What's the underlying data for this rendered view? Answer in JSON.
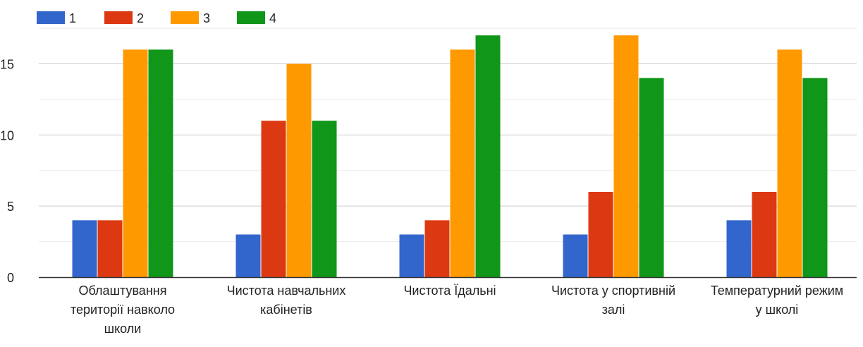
{
  "chart_data": {
    "type": "bar",
    "categories": [
      [
        "Облаштування",
        "території навколо",
        "школи"
      ],
      [
        "Чистота навчальних",
        "кабінетів"
      ],
      [
        "Чистота Їдальні"
      ],
      [
        "Чистота у спортивній",
        "залі"
      ],
      [
        "Температурний режим",
        "у школі"
      ]
    ],
    "series": [
      {
        "name": "1",
        "color": "#3366cc",
        "values": [
          4,
          3,
          3,
          3,
          4
        ]
      },
      {
        "name": "2",
        "color": "#dc3912",
        "values": [
          4,
          11,
          4,
          6,
          6
        ]
      },
      {
        "name": "3",
        "color": "#ff9900",
        "values": [
          16,
          15,
          16,
          17,
          16
        ]
      },
      {
        "name": "4",
        "color": "#109618",
        "values": [
          16,
          11,
          17,
          14,
          14
        ]
      }
    ],
    "ylim": [
      0,
      18
    ],
    "yticks": [
      0,
      5,
      10,
      15
    ],
    "grid": true,
    "legend": "top-left"
  }
}
